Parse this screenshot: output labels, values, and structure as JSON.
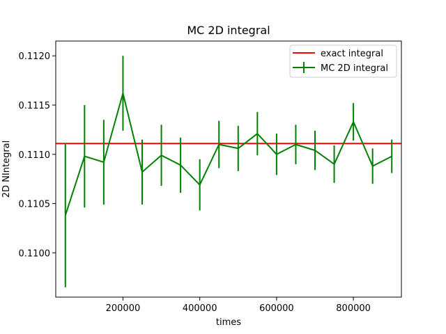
{
  "chart_data": {
    "type": "line",
    "title": "MC 2D integral",
    "xlabel": "times",
    "ylabel": "2D NIntegral",
    "xlim": [
      25000,
      925000
    ],
    "ylim": [
      0.10955,
      0.11215
    ],
    "xticks": [
      200000,
      400000,
      600000,
      800000
    ],
    "xtick_labels": [
      "200000",
      "400000",
      "600000",
      "800000"
    ],
    "yticks": [
      0.11,
      0.1105,
      0.111,
      0.1115,
      0.112
    ],
    "ytick_labels": [
      "0.1100",
      "0.1105",
      "0.1110",
      "0.1115",
      "0.1120"
    ],
    "grid": false,
    "legend_position": "top-right",
    "legend": [
      "exact integral",
      "MC 2D integral"
    ],
    "exact_value": 0.11111,
    "series": [
      {
        "name": "MC 2D integral",
        "color": "#008000",
        "x": [
          50000,
          100000,
          150000,
          200000,
          250000,
          300000,
          350000,
          400000,
          450000,
          500000,
          550000,
          600000,
          650000,
          700000,
          750000,
          800000,
          850000,
          900000
        ],
        "y": [
          0.11038,
          0.11098,
          0.11092,
          0.11162,
          0.11082,
          0.11099,
          0.11089,
          0.11069,
          0.1111,
          0.11106,
          0.11121,
          0.111,
          0.1111,
          0.11104,
          0.1109,
          0.11133,
          0.11088,
          0.11098
        ],
        "err": [
          0.00073,
          0.00052,
          0.00043,
          0.00038,
          0.00033,
          0.00031,
          0.00028,
          0.00026,
          0.00024,
          0.00023,
          0.00022,
          0.00021,
          0.0002,
          0.0002,
          0.00019,
          0.00019,
          0.00018,
          0.00017
        ]
      }
    ],
    "colors": {
      "exact": "#ff0000",
      "mc": "#008000"
    }
  }
}
